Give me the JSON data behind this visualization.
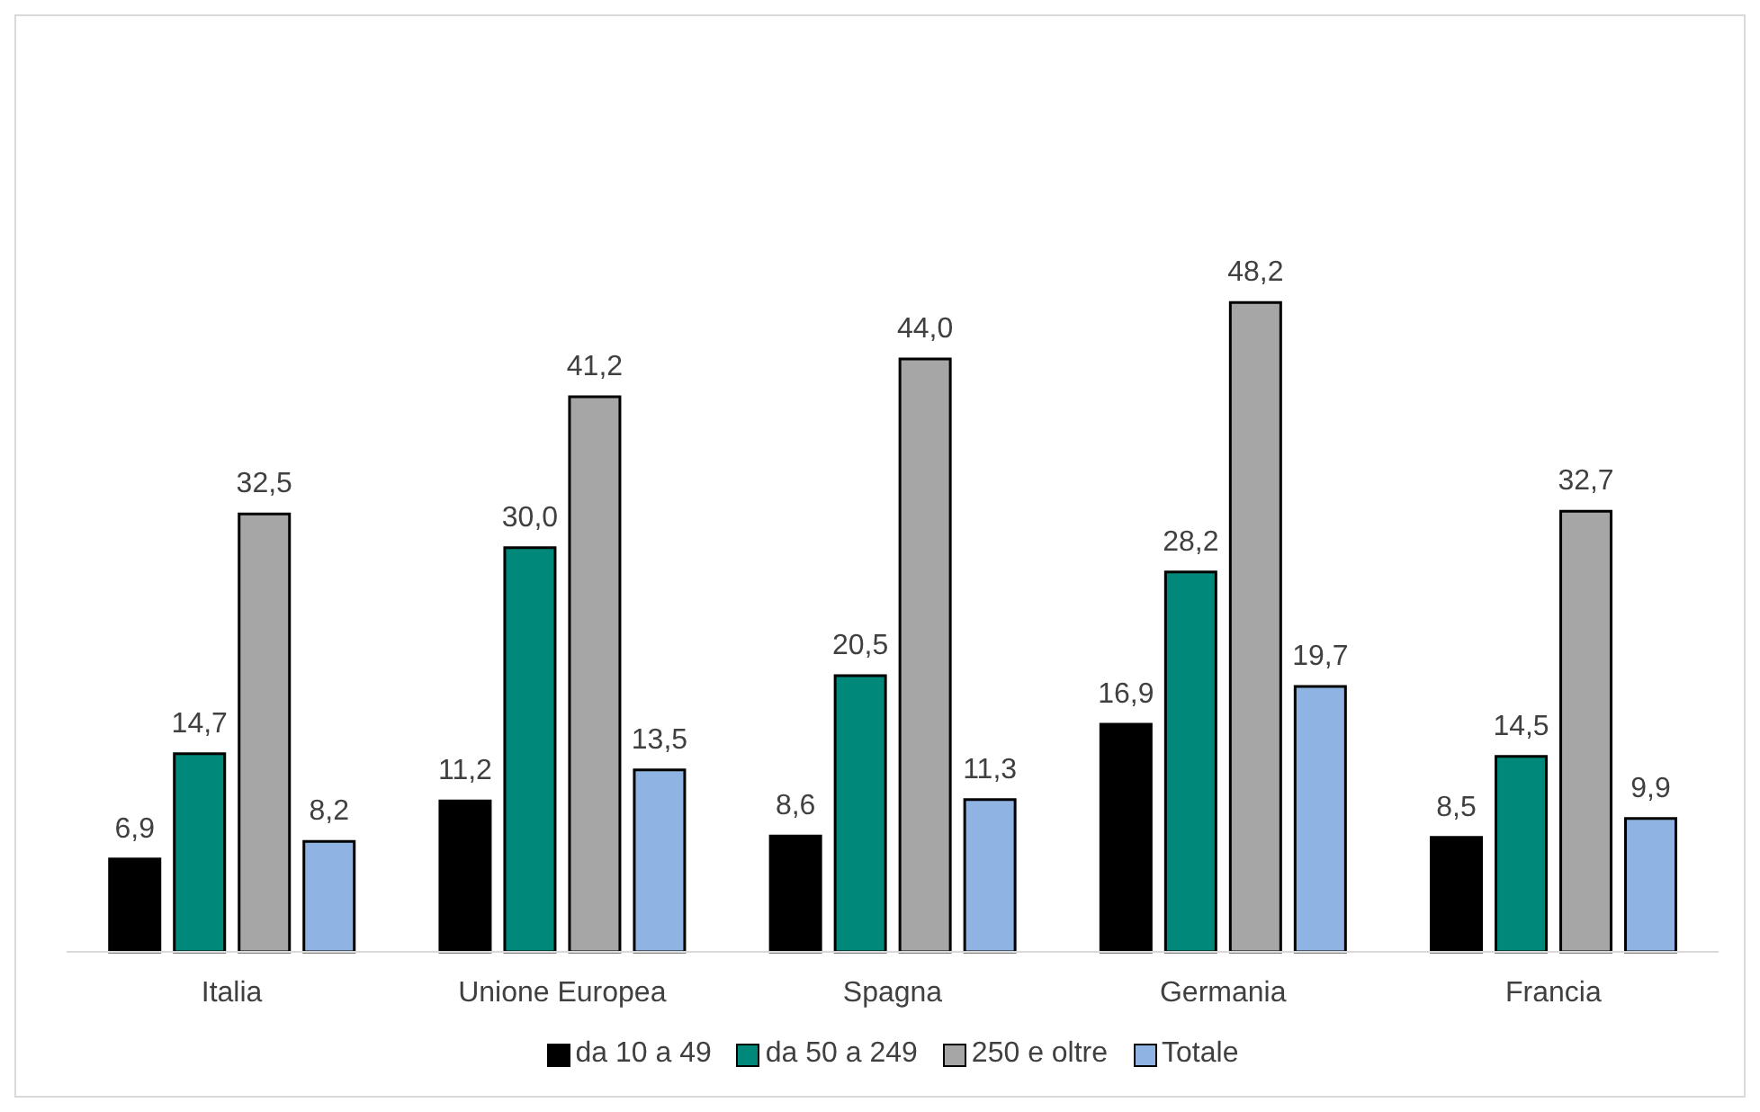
{
  "chart_data": {
    "type": "bar",
    "categories": [
      "Italia",
      "Unione Europea",
      "Spagna",
      "Germania",
      "Francia"
    ],
    "series": [
      {
        "name": "da 10 a 49",
        "color": "#000000",
        "values": [
          6.9,
          11.2,
          8.6,
          16.9,
          8.5
        ],
        "value_labels": [
          "6,9",
          "11,2",
          "8,6",
          "16,9",
          "8,5"
        ]
      },
      {
        "name": "da 50 a 249",
        "color": "#00897b",
        "values": [
          14.7,
          30.0,
          20.5,
          28.2,
          14.5
        ],
        "value_labels": [
          "14,7",
          "30,0",
          "20,5",
          "28,2",
          "14,5"
        ]
      },
      {
        "name": "250 e oltre",
        "color": "#a6a6a6",
        "values": [
          32.5,
          41.2,
          44.0,
          48.2,
          32.7
        ],
        "value_labels": [
          "32,5",
          "41,2",
          "44,0",
          "48,2",
          "32,7"
        ]
      },
      {
        "name": "Totale",
        "color": "#8fb4e3",
        "values": [
          8.2,
          13.5,
          11.3,
          19.7,
          9.9
        ],
        "value_labels": [
          "8,2",
          "13,5",
          "11,3",
          "19,7",
          "9,9"
        ]
      }
    ],
    "legend": "bottom",
    "grid": false
  }
}
